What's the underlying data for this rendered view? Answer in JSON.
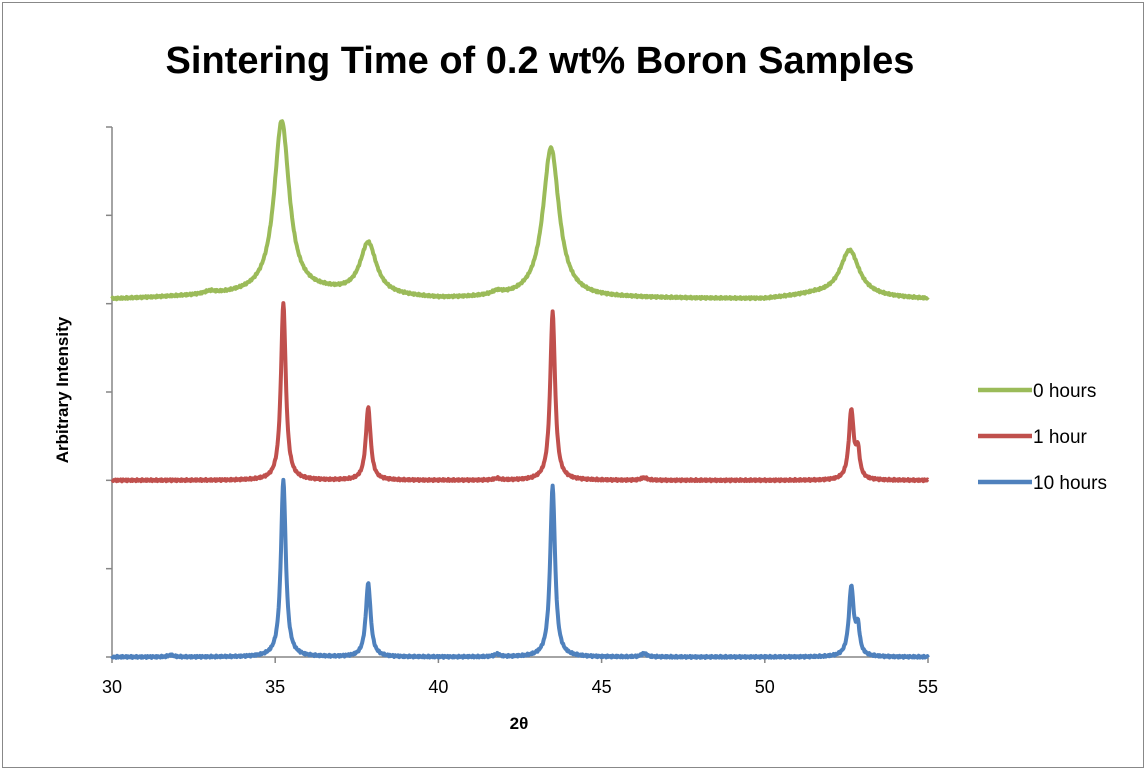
{
  "chart_data": {
    "type": "line",
    "title": "Sintering Time of 0.2 wt% Boron Samples",
    "xlabel": "2θ",
    "ylabel": "Arbitrary Intensity",
    "xlim": [
      30,
      55
    ],
    "xticks": [
      30,
      35,
      40,
      45,
      50,
      55
    ],
    "ylim": [
      0,
      6
    ],
    "yticks": [
      0,
      1,
      2,
      3,
      4,
      5,
      6
    ],
    "y_tick_labels_shown": false,
    "grid": false,
    "legend_position": "right",
    "series": [
      {
        "name": "0 hours",
        "color": "#9BBB59",
        "baseline": 4.05,
        "background": [
          [
            30,
            4.05
          ],
          [
            34,
            4.1
          ],
          [
            36.5,
            4.12
          ],
          [
            40,
            4.05
          ],
          [
            42,
            4.06
          ],
          [
            46,
            4.06
          ],
          [
            50,
            4.05
          ],
          [
            51.5,
            4.1
          ],
          [
            55,
            4.05
          ]
        ],
        "peaks": [
          {
            "x": 35.2,
            "height": 1.95,
            "width": 0.28
          },
          {
            "x": 37.85,
            "height": 0.58,
            "width": 0.3
          },
          {
            "x": 43.45,
            "height": 1.7,
            "width": 0.3
          },
          {
            "x": 52.6,
            "height": 0.52,
            "width": 0.35
          },
          {
            "x": 33.0,
            "height": 0.03,
            "width": 0.2
          },
          {
            "x": 41.8,
            "height": 0.04,
            "width": 0.2
          }
        ]
      },
      {
        "name": "1 hour",
        "color": "#C0504D",
        "baseline": 2.0,
        "background": [
          [
            30,
            2.0
          ],
          [
            55,
            2.0
          ]
        ],
        "peaks": [
          {
            "x": 35.25,
            "height": 2.0,
            "width": 0.09
          },
          {
            "x": 37.85,
            "height": 0.82,
            "width": 0.09
          },
          {
            "x": 43.5,
            "height": 1.9,
            "width": 0.09
          },
          {
            "x": 52.65,
            "height": 0.78,
            "width": 0.09
          },
          {
            "x": 52.85,
            "height": 0.3,
            "width": 0.07
          },
          {
            "x": 41.8,
            "height": 0.02,
            "width": 0.1
          },
          {
            "x": 46.3,
            "height": 0.03,
            "width": 0.1
          }
        ]
      },
      {
        "name": "10 hours",
        "color": "#4F81BD",
        "baseline": 0.0,
        "background": [
          [
            30,
            0.0
          ],
          [
            55,
            0.0
          ]
        ],
        "peaks": [
          {
            "x": 35.25,
            "height": 2.0,
            "width": 0.09
          },
          {
            "x": 37.85,
            "height": 0.83,
            "width": 0.09
          },
          {
            "x": 43.5,
            "height": 1.93,
            "width": 0.09
          },
          {
            "x": 52.65,
            "height": 0.78,
            "width": 0.09
          },
          {
            "x": 52.85,
            "height": 0.3,
            "width": 0.07
          },
          {
            "x": 31.8,
            "height": 0.02,
            "width": 0.1
          },
          {
            "x": 41.8,
            "height": 0.03,
            "width": 0.1
          },
          {
            "x": 46.3,
            "height": 0.04,
            "width": 0.1
          }
        ]
      }
    ]
  }
}
